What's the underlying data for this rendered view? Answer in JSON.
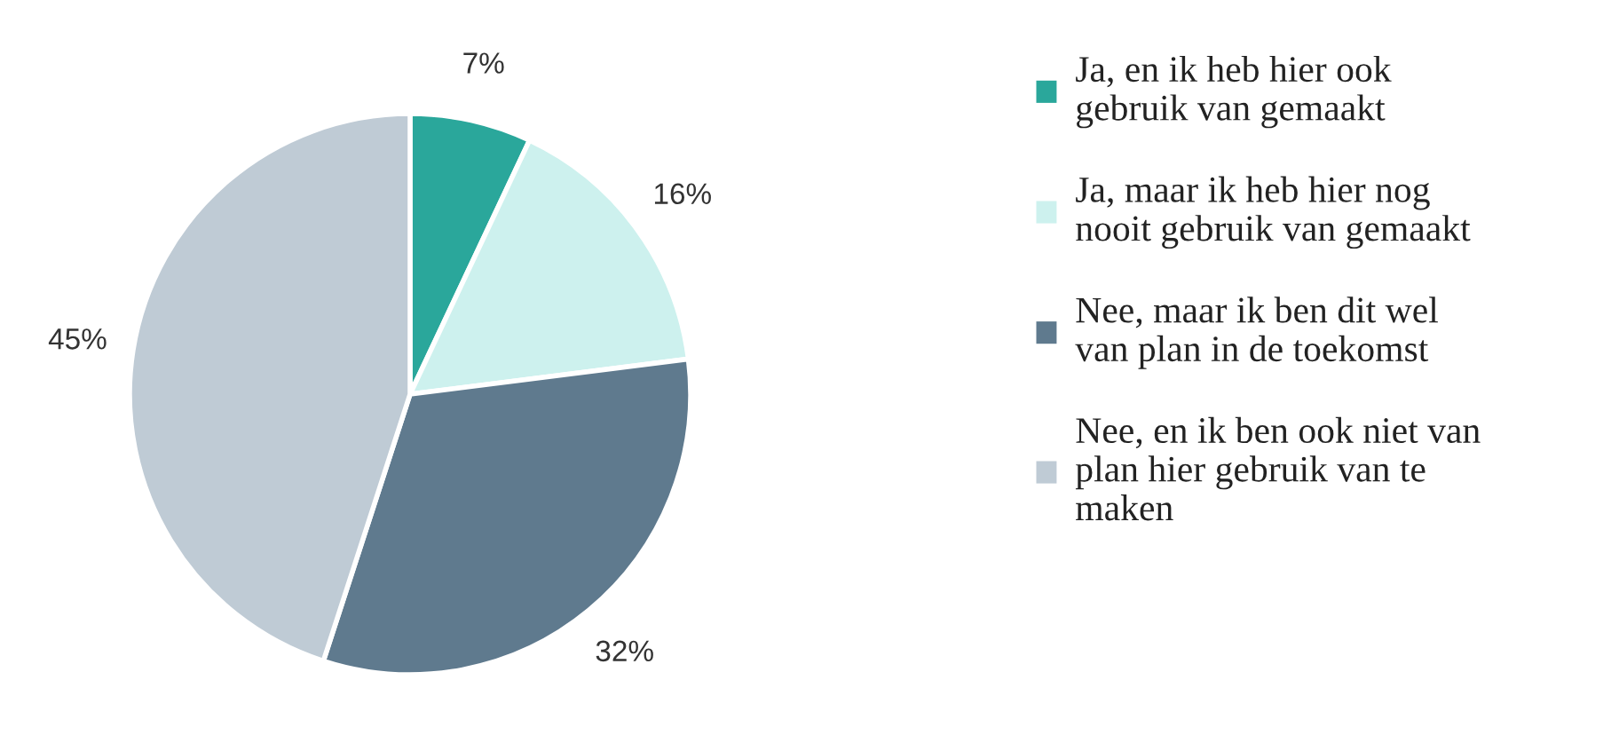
{
  "chart_data": {
    "type": "pie",
    "categories": [
      "Ja, en ik heb hier ook\ngebruik van gemaakt",
      "Ja, maar ik heb hier nog\nnooit gebruik van gemaakt",
      "Nee, maar ik ben dit wel\nvan plan in de toekomst",
      "Nee, en ik ben ook niet van\nplan hier gebruik van te\nmaken"
    ],
    "values": [
      7,
      16,
      32,
      45
    ],
    "colors": [
      "#2aa79b",
      "#cdf1ee",
      "#5f7a8e",
      "#bfcbd5"
    ],
    "value_labels": [
      "7%",
      "16%",
      "32%",
      "45%"
    ],
    "legend": "right"
  }
}
